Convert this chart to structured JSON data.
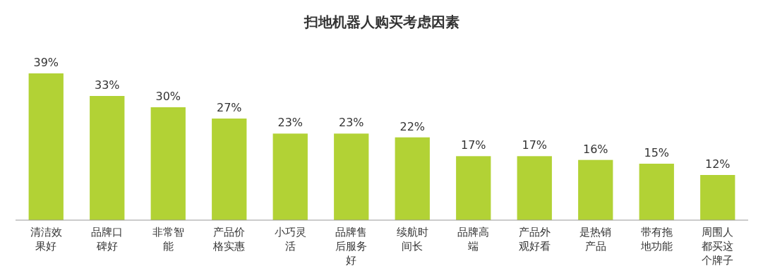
{
  "chart_data": {
    "type": "bar",
    "title": "扫地机器人购买考虑因素",
    "categories": [
      "清洁效果好",
      "品牌口碑好",
      "非常智能",
      "产品价格实惠",
      "小巧灵活",
      "品牌售后服务好",
      "续航时间长",
      "品牌高端",
      "产品外观好看",
      "是热销产品",
      "带有拖地功能",
      "周围人都买这个牌子"
    ],
    "values": [
      39,
      33,
      30,
      27,
      23,
      23,
      22,
      17,
      17,
      16,
      15,
      12
    ],
    "value_labels": [
      "39%",
      "33%",
      "30%",
      "27%",
      "23%",
      "23%",
      "22%",
      "17%",
      "17%",
      "16%",
      "15%",
      "12%"
    ],
    "color": "#b2d235"
  }
}
